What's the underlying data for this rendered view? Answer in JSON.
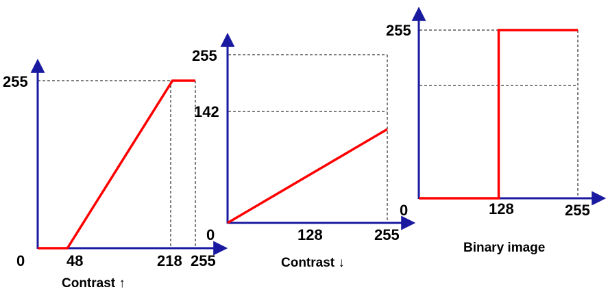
{
  "chart_data": [
    {
      "type": "line",
      "caption": "Contrast ↑",
      "x_ticks": [
        "0",
        "48",
        "218",
        "255"
      ],
      "y_ticks": [
        "255"
      ],
      "xlim": [
        0,
        255
      ],
      "ylim": [
        0,
        255
      ],
      "series": [
        {
          "x": [
            0,
            48,
            218,
            255
          ],
          "y": [
            0,
            0,
            255,
            255
          ]
        }
      ],
      "line_color": "#ff0000",
      "axis_color": "#1a1aa0"
    },
    {
      "type": "line",
      "caption": "Contrast ↓",
      "x_ticks": [
        "0",
        "128",
        "255"
      ],
      "y_ticks": [
        "255",
        "142"
      ],
      "xlim": [
        0,
        255
      ],
      "ylim": [
        0,
        255
      ],
      "series": [
        {
          "x": [
            0,
            255
          ],
          "y": [
            0,
            142
          ]
        }
      ],
      "line_color": "#ff0000",
      "axis_color": "#1a1aa0"
    },
    {
      "type": "line",
      "caption": "Binary image",
      "x_ticks": [
        "0",
        "128",
        "255"
      ],
      "y_ticks": [
        "255"
      ],
      "xlim": [
        0,
        255
      ],
      "ylim": [
        0,
        255
      ],
      "series": [
        {
          "x": [
            0,
            128,
            128,
            255
          ],
          "y": [
            0,
            0,
            255,
            255
          ]
        }
      ],
      "line_color": "#ff0000",
      "axis_color": "#1a1aa0"
    }
  ]
}
